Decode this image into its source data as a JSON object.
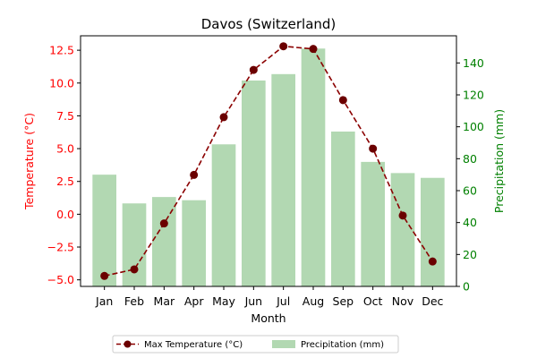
{
  "chart_data": {
    "type": "bar+line",
    "title": "Davos (Switzerland)",
    "xlabel": "Month",
    "categories": [
      "Jan",
      "Feb",
      "Mar",
      "Apr",
      "May",
      "Jun",
      "Jul",
      "Aug",
      "Sep",
      "Oct",
      "Nov",
      "Dec"
    ],
    "left_axis": {
      "label": "Temperature (°C)",
      "color": "#ff0000",
      "ylim": [
        -5.5,
        13.6
      ],
      "ticks": [
        -5.0,
        -2.5,
        0.0,
        2.5,
        5.0,
        7.5,
        10.0,
        12.5
      ],
      "tick_labels": [
        "−5.0",
        "−2.5",
        "0.0",
        "2.5",
        "5.0",
        "7.5",
        "10.0",
        "12.5"
      ]
    },
    "right_axis": {
      "label": "Precipitation (mm)",
      "color": "#008000",
      "ylim": [
        0,
        157
      ],
      "ticks": [
        0,
        20,
        40,
        60,
        80,
        100,
        120,
        140
      ],
      "tick_labels": [
        "0",
        "20",
        "40",
        "60",
        "80",
        "100",
        "120",
        "140"
      ]
    },
    "series": [
      {
        "name": "Max Temperature (°C)",
        "kind": "line",
        "axis": "left",
        "color": "#8b0000",
        "marker_color": "#6b0000",
        "values": [
          -4.7,
          -4.2,
          -0.7,
          3.0,
          7.4,
          11.0,
          12.8,
          12.6,
          8.7,
          5.0,
          -0.1,
          -3.6
        ]
      },
      {
        "name": "Precipitation (mm)",
        "kind": "bar",
        "axis": "right",
        "color": "#b2d8b2",
        "values": [
          70,
          52,
          56,
          54,
          89,
          129,
          133,
          149,
          97,
          78,
          71,
          68
        ]
      }
    ],
    "legend": {
      "placement": "bottom-center",
      "columns": 2
    },
    "grid": false
  }
}
